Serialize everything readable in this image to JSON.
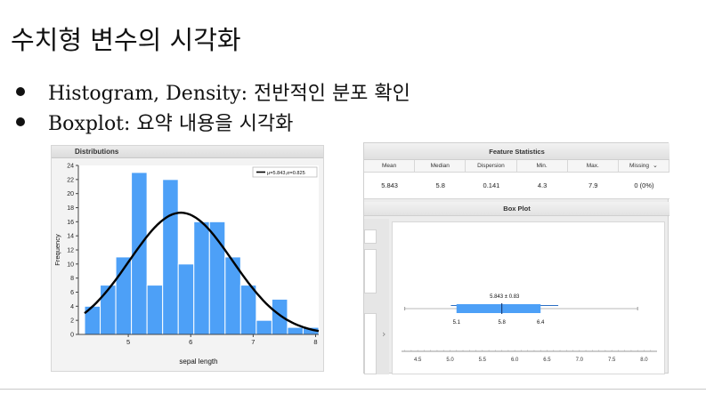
{
  "slide": {
    "title": "수치형 변수의 시각화",
    "bullets": [
      "Histogram, Density: 전반적인 분포 확인",
      "Boxplot: 요약 내용을 시각화"
    ]
  },
  "distributions_panel": {
    "title": "Distributions",
    "legend": "μ=5.843,σ=0.825",
    "chart_data": {
      "type": "bar",
      "xlabel": "sepal length",
      "ylabel": "Frequency",
      "bin_edges": [
        4.3,
        4.55,
        4.8,
        5.05,
        5.3,
        5.55,
        5.8,
        6.05,
        6.3,
        6.55,
        6.8,
        7.05,
        7.3,
        7.55,
        7.8,
        8.05
      ],
      "values": [
        4,
        7,
        11,
        23,
        7,
        22,
        10,
        16,
        16,
        11,
        7,
        2,
        5,
        1,
        1
      ],
      "density_mu": 5.843,
      "density_sigma": 0.825,
      "xlim": [
        4.2,
        8.05
      ],
      "ylim": [
        0,
        24
      ],
      "x_ticks": [
        5,
        6,
        7,
        8
      ],
      "y_ticks": [
        0,
        2,
        4,
        6,
        8,
        10,
        12,
        14,
        16,
        18,
        20,
        22,
        24
      ],
      "bar_color": "#4da0f7",
      "curve_color": "#000000"
    }
  },
  "feature_statistics": {
    "title": "Feature Statistics",
    "columns": [
      "Mean",
      "Median",
      "Dispersion",
      "Min.",
      "Max.",
      "Missing"
    ],
    "row": [
      "5.843",
      "5.8",
      "0.141",
      "4.3",
      "7.9",
      "0 (0%)"
    ]
  },
  "box_plot": {
    "title": "Box Plot",
    "annotation": "5.843 ± 0.83",
    "q1_label": "5.1",
    "median_label": "5.8",
    "q3_label": "6.4",
    "axis_ticks": [
      "4.5",
      "5.0",
      "5.5",
      "6.0",
      "6.5",
      "7.0",
      "7.5",
      "8.0"
    ],
    "chart_data": {
      "type": "box",
      "min": 4.3,
      "q1": 5.1,
      "median": 5.8,
      "q3": 6.4,
      "max": 7.9,
      "mean": 5.843,
      "sd": 0.83,
      "xlim": [
        4.25,
        8.2
      ],
      "box_color": "#4da0f7"
    }
  }
}
